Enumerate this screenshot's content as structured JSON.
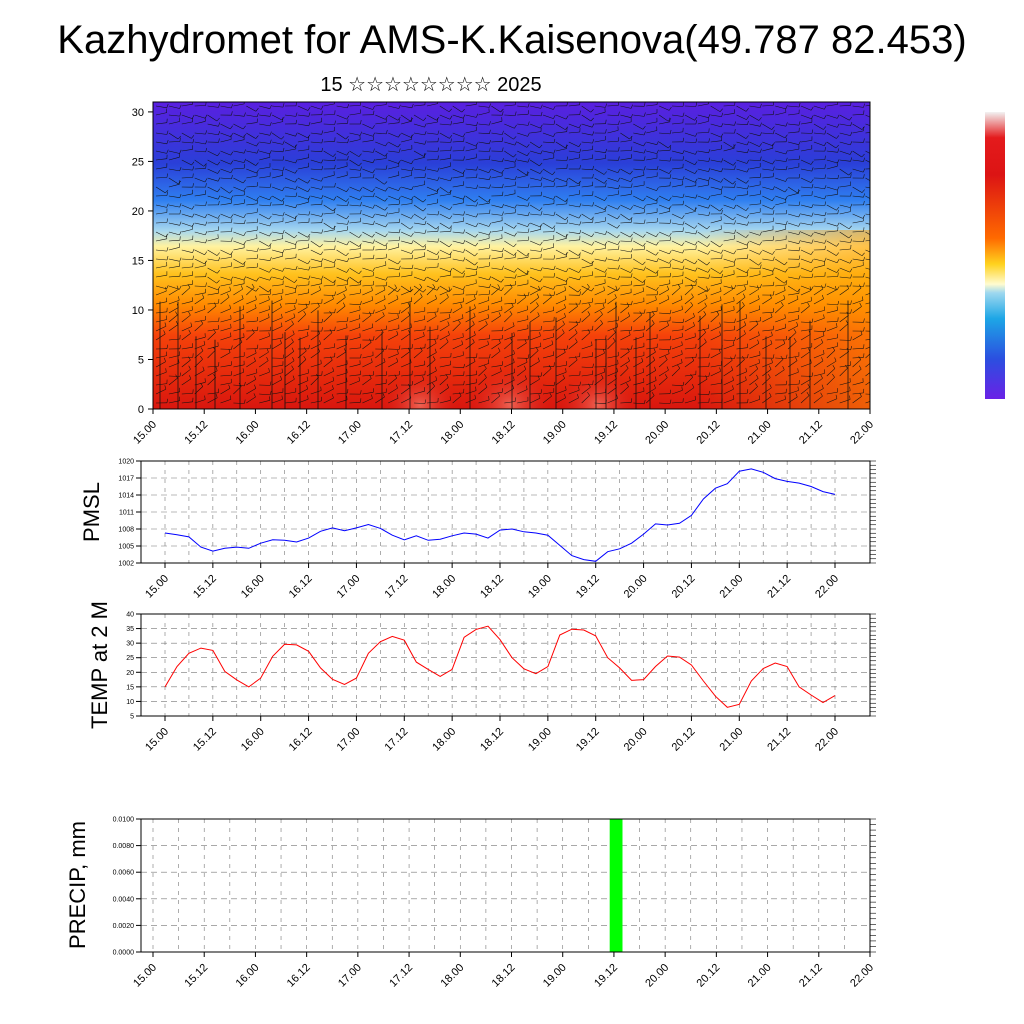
{
  "header": {
    "title": "Kazhydromet for AMS-K.Kaisenova(49.787 82.453)",
    "subtitle": "15 ☆☆☆☆☆☆☆☆ 2025"
  },
  "x_tick_labels": [
    "15.00",
    "15.12",
    "16.00",
    "16.12",
    "17.00",
    "17.12",
    "18.00",
    "18.12",
    "19.00",
    "19.12",
    "20.00",
    "20.12",
    "21.00",
    "21.12",
    "22.00"
  ],
  "colors": {
    "pmsl_line": "#0000ff",
    "temp_line": "#ff0000",
    "precip_bar": "#00ff00"
  },
  "chart_data": [
    {
      "type": "heatmap",
      "name": "upper-level temperature/wind cross-section",
      "title": "",
      "xlabel": "",
      "ylabel": "",
      "x_range": [
        0,
        168
      ],
      "ylim": [
        0,
        31
      ],
      "y_ticks": [
        0,
        5,
        10,
        15,
        20,
        25,
        30
      ],
      "x_ticks": [
        "15.00",
        "15.12",
        "16.00",
        "16.12",
        "17.00",
        "17.12",
        "18.00",
        "18.12",
        "19.00",
        "19.12",
        "20.00",
        "20.12",
        "21.00",
        "21.12",
        "22.00"
      ]
    },
    {
      "type": "line",
      "name": "PMSL",
      "ylabel": "PMSL",
      "ylim": [
        1002,
        1020
      ],
      "y_ticks": [
        1002,
        1005,
        1008,
        1011,
        1014,
        1017,
        1020
      ],
      "x_range": [
        0,
        168
      ],
      "x_ticks": [
        "15.00",
        "15.12",
        "16.00",
        "16.12",
        "17.00",
        "17.12",
        "18.00",
        "18.12",
        "19.00",
        "19.12",
        "20.00",
        "20.12",
        "21.00",
        "21.12",
        "22.00"
      ],
      "x": [
        0,
        3,
        6,
        9,
        12,
        15,
        18,
        21,
        24,
        27,
        30,
        33,
        36,
        39,
        42,
        45,
        48,
        51,
        54,
        57,
        60,
        63,
        66,
        69,
        72,
        75,
        78,
        81,
        84,
        87,
        90,
        93,
        96,
        99,
        102,
        105,
        108,
        111,
        114,
        117,
        120,
        123,
        126,
        129,
        132,
        135,
        138,
        141,
        144,
        147,
        150,
        153,
        156,
        159,
        162,
        165,
        168
      ],
      "values": [
        1007.3,
        1007,
        1006.6,
        1004.8,
        1004.1,
        1004.6,
        1004.8,
        1004.6,
        1005.5,
        1006.1,
        1006,
        1005.7,
        1006.4,
        1007.6,
        1008.2,
        1007.7,
        1008.2,
        1008.8,
        1008.1,
        1006.9,
        1006.1,
        1006.8,
        1006,
        1006.2,
        1006.8,
        1007.3,
        1007.1,
        1006.4,
        1007.8,
        1008,
        1007.5,
        1007.3,
        1006.9,
        1005.1,
        1003.3,
        1002.6,
        1002.3,
        1004,
        1004.5,
        1005.5,
        1007.1,
        1008.9,
        1008.7,
        1009,
        1010.4,
        1013.3,
        1015.2,
        1016,
        1018.2,
        1018.6,
        1018,
        1016.9,
        1016.4,
        1016.1,
        1015.5,
        1014.6,
        1014.1
      ]
    },
    {
      "type": "line",
      "name": "TEMP at 2 M",
      "ylabel": "TEMP at 2 M",
      "ylim": [
        5,
        40
      ],
      "y_ticks": [
        5,
        10,
        15,
        20,
        25,
        30,
        35,
        40
      ],
      "x_range": [
        0,
        168
      ],
      "x_ticks": [
        "15.00",
        "15.12",
        "16.00",
        "16.12",
        "17.00",
        "17.12",
        "18.00",
        "18.12",
        "19.00",
        "19.12",
        "20.00",
        "20.12",
        "21.00",
        "21.12",
        "22.00"
      ],
      "x": [
        0,
        3,
        6,
        9,
        12,
        15,
        18,
        21,
        24,
        27,
        30,
        33,
        36,
        39,
        42,
        45,
        48,
        51,
        54,
        57,
        60,
        63,
        66,
        69,
        72,
        75,
        78,
        81,
        84,
        87,
        90,
        93,
        96,
        99,
        102,
        105,
        108,
        111,
        114,
        117,
        120,
        123,
        126,
        129,
        132,
        135,
        138,
        141,
        144,
        147,
        150,
        153,
        156,
        159,
        162,
        165,
        168
      ],
      "values": [
        15,
        22,
        26.5,
        28.3,
        27.5,
        20.3,
        17.4,
        15,
        18,
        25.5,
        29.6,
        29.4,
        27.2,
        21.5,
        17.6,
        15.8,
        18,
        26.5,
        30.5,
        32.3,
        31,
        23.5,
        21,
        18.6,
        21,
        32,
        34.7,
        35.8,
        31.2,
        25,
        21.2,
        19.5,
        22,
        32.8,
        34.8,
        34.5,
        32.5,
        25,
        21.5,
        17.2,
        17.5,
        22,
        25.6,
        25.2,
        22.5,
        17,
        11.8,
        8,
        9,
        17,
        21.3,
        23.2,
        22,
        15,
        12.2,
        9.6,
        12
      ]
    },
    {
      "type": "bar",
      "name": "PRECIP, mm",
      "ylabel": "PRECIP, mm",
      "ylim": [
        0,
        0.01
      ],
      "y_ticks": [
        "0.0000",
        "0.0020",
        "0.0040",
        "0.0060",
        "0.0080",
        "0.0100"
      ],
      "x_range": [
        0,
        168
      ],
      "x_ticks": [
        "15.00",
        "15.12",
        "16.00",
        "16.12",
        "17.00",
        "17.12",
        "18.00",
        "18.12",
        "19.00",
        "19.12",
        "20.00",
        "20.12",
        "21.00",
        "21.12",
        "22.00"
      ],
      "bars": [
        {
          "x_start": 107,
          "x_end": 110,
          "value": 0.01
        }
      ]
    }
  ]
}
